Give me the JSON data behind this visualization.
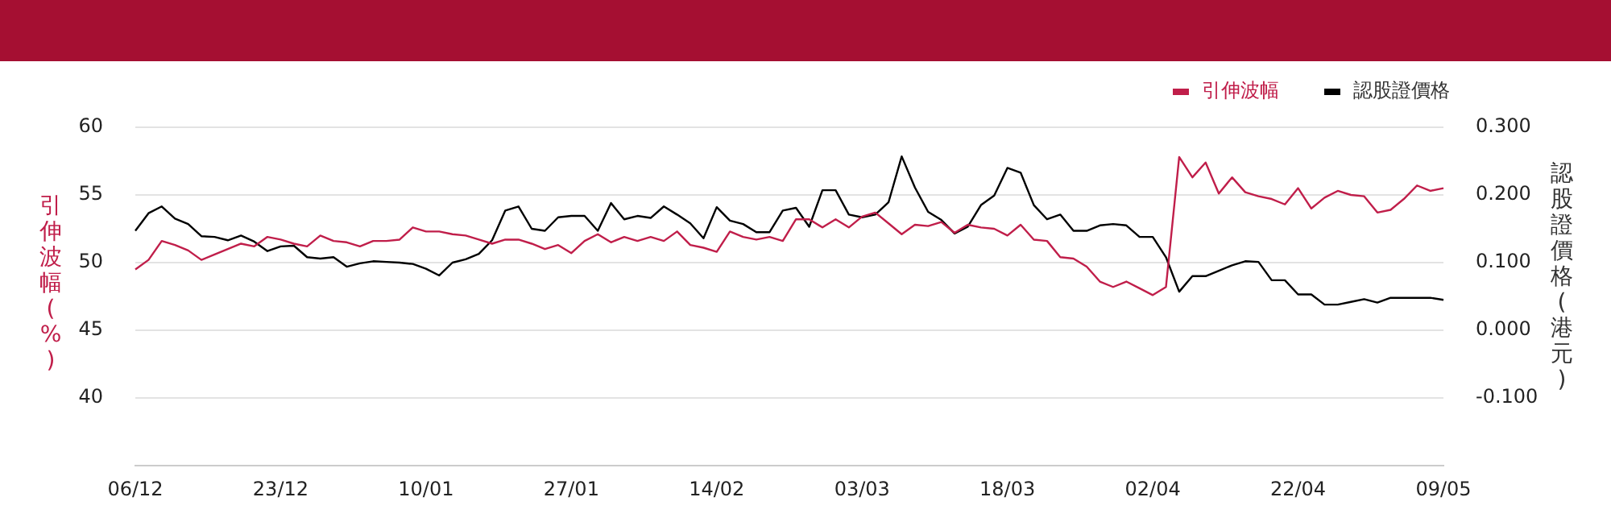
{
  "chart_data": {
    "type": "line",
    "ylabel": "引伸波幅(%)",
    "y2label": "認股證價格(港元)",
    "categories": [
      "06/12",
      null,
      null,
      null,
      null,
      null,
      null,
      null,
      null,
      null,
      null,
      "23/12",
      null,
      null,
      null,
      null,
      null,
      null,
      null,
      null,
      null,
      null,
      "10/01",
      null,
      null,
      null,
      null,
      null,
      null,
      null,
      null,
      null,
      null,
      "27/01",
      null,
      null,
      null,
      null,
      null,
      null,
      null,
      null,
      null,
      null,
      "14/02",
      null,
      null,
      null,
      null,
      null,
      null,
      null,
      null,
      null,
      null,
      "03/03",
      null,
      null,
      null,
      null,
      null,
      null,
      null,
      null,
      null,
      null,
      "18/03",
      null,
      null,
      null,
      null,
      null,
      null,
      null,
      null,
      null,
      null,
      "02/04",
      null,
      null,
      null,
      null,
      null,
      null,
      null,
      null,
      null,
      null,
      "22/04",
      null,
      null,
      null,
      null,
      null,
      null,
      null,
      null,
      null,
      null,
      "09/05"
    ],
    "series": [
      {
        "name": "引伸波幅",
        "color": "#c01e4a",
        "axis": "y",
        "values": [
          49.5,
          50.2,
          51.6,
          51.3,
          50.9,
          50.2,
          50.6,
          51.0,
          51.4,
          51.2,
          51.9,
          51.7,
          51.4,
          51.2,
          52.0,
          51.6,
          51.5,
          51.2,
          51.6,
          51.6,
          51.7,
          52.6,
          52.3,
          52.3,
          52.1,
          52.0,
          51.7,
          51.4,
          51.7,
          51.7,
          51.4,
          51.0,
          51.3,
          50.7,
          51.6,
          52.1,
          51.5,
          51.9,
          51.6,
          51.9,
          51.6,
          52.3,
          51.3,
          51.1,
          50.8,
          52.3,
          51.9,
          51.7,
          51.9,
          51.6,
          53.2,
          53.2,
          52.6,
          53.2,
          52.6,
          53.4,
          53.7,
          52.9,
          52.1,
          52.8,
          52.7,
          53.0,
          52.2,
          52.8,
          52.6,
          52.5,
          52.0,
          52.8,
          51.7,
          51.6,
          50.4,
          50.3,
          49.7,
          48.6,
          48.2,
          48.6,
          48.1,
          47.6,
          48.2,
          57.8,
          56.3,
          57.4,
          55.1,
          56.3,
          55.2,
          54.9,
          54.7,
          54.3,
          55.5,
          54.0,
          54.8,
          55.3,
          55.0,
          54.9,
          53.7,
          53.9,
          54.7,
          55.7,
          55.3,
          55.5
        ]
      },
      {
        "name": "認股證價格",
        "color": "#000000",
        "axis": "y2",
        "values": [
          0.147,
          0.173,
          0.183,
          0.165,
          0.157,
          0.139,
          0.138,
          0.133,
          0.14,
          0.131,
          0.117,
          0.124,
          0.125,
          0.108,
          0.106,
          0.108,
          0.094,
          0.099,
          0.102,
          0.101,
          0.1,
          0.098,
          0.091,
          0.081,
          0.1,
          0.105,
          0.113,
          0.133,
          0.177,
          0.183,
          0.15,
          0.147,
          0.167,
          0.169,
          0.169,
          0.147,
          0.188,
          0.164,
          0.169,
          0.166,
          0.183,
          0.171,
          0.158,
          0.136,
          0.182,
          0.162,
          0.157,
          0.145,
          0.145,
          0.177,
          0.181,
          0.153,
          0.207,
          0.207,
          0.171,
          0.167,
          0.171,
          0.189,
          0.257,
          0.211,
          0.175,
          0.163,
          0.143,
          0.153,
          0.185,
          0.199,
          0.24,
          0.233,
          0.185,
          0.164,
          0.171,
          0.147,
          0.147,
          0.155,
          0.157,
          0.155,
          0.138,
          0.138,
          0.108,
          0.057,
          0.08,
          0.08,
          0.088,
          0.096,
          0.102,
          0.101,
          0.074,
          0.074,
          0.053,
          0.053,
          0.038,
          0.038,
          0.042,
          0.046,
          0.041,
          0.048,
          0.048,
          0.048,
          0.048,
          0.045
        ]
      }
    ],
    "ylim": [
      35,
      60
    ],
    "yticks": [
      40,
      45,
      50,
      55,
      60
    ],
    "y2lim": [
      -0.2,
      0.3
    ],
    "y2ticks": [
      {
        "value": -0.1,
        "label": "-0.100"
      },
      {
        "value": 0,
        "label": "0.000"
      },
      {
        "value": 0.1,
        "label": "0.100"
      },
      {
        "value": 0.2,
        "label": "0.200"
      },
      {
        "value": 0.3,
        "label": "0.300"
      }
    ],
    "grid": "y",
    "legend": "top right",
    "marker": "none",
    "line_style": "solid"
  }
}
